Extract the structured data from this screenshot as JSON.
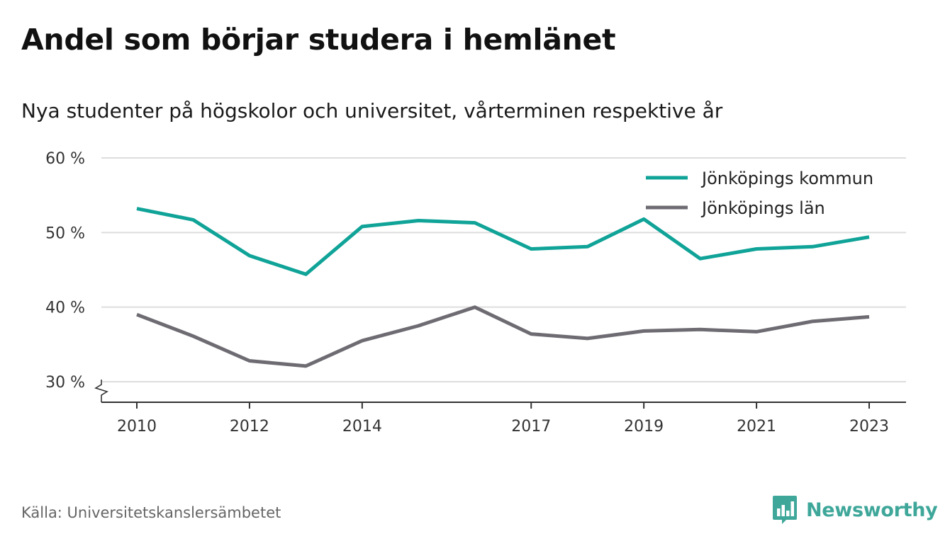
{
  "colors": {
    "kommun": "#10a398",
    "lan": "#6e6c72",
    "grid": "#dddddd",
    "axis": "#333333",
    "brand": "#3fa79a"
  },
  "brand": {
    "name": "Newsworthy",
    "icon": "bar-chart-speech-bubble-icon"
  },
  "source": "Källa: Universitetskanslersämbetet",
  "chart_data": {
    "type": "line",
    "title": "Andel som börjar studera i hemlänet",
    "subtitle": "Nya studenter på högskolor och universitet, vårterminen respektive år",
    "xlabel": "",
    "ylabel": "",
    "x": [
      2010,
      2011,
      2012,
      2013,
      2014,
      2015,
      2016,
      2017,
      2018,
      2019,
      2020,
      2021,
      2022,
      2023
    ],
    "x_ticks": [
      2010,
      2012,
      2014,
      2017,
      2019,
      2021,
      2023
    ],
    "x_tick_labels": [
      "2010",
      "2012",
      "2014",
      "2017",
      "2019",
      "2021",
      "2023"
    ],
    "y_ticks": [
      30,
      40,
      50,
      60
    ],
    "y_tick_labels": [
      "30 %",
      "40 %",
      "50 %",
      "60 %"
    ],
    "ylim": [
      30,
      60
    ],
    "y_axis_break": true,
    "grid": true,
    "legend_position": "top-right",
    "series": [
      {
        "name": "Jönköpings kommun",
        "color": "#10a398",
        "values": [
          53.2,
          51.7,
          46.9,
          44.4,
          50.8,
          51.6,
          51.3,
          47.8,
          48.1,
          51.8,
          46.5,
          47.8,
          48.1,
          49.4
        ]
      },
      {
        "name": "Jönköpings län",
        "color": "#6e6c72",
        "values": [
          39.0,
          36.1,
          32.8,
          32.1,
          35.5,
          37.5,
          40.0,
          36.4,
          35.8,
          36.8,
          37.0,
          36.7,
          38.1,
          38.7
        ]
      }
    ]
  }
}
